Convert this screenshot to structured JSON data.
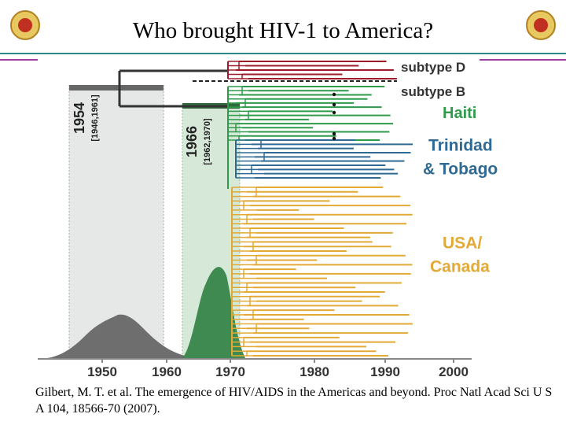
{
  "title": "Who brought HIV-1 to America?",
  "figure": {
    "clades": [
      {
        "lines": [
          "subtype D"
        ]
      },
      {
        "lines": [
          "subtype B"
        ]
      },
      {
        "lines": [
          "Haiti"
        ]
      },
      {
        "lines": [
          "Trinidad",
          "& Tobago"
        ]
      },
      {
        "lines": [
          "USA/",
          "Canada"
        ]
      }
    ],
    "estimates": [
      {
        "year": "1954",
        "interval": "[1946,1961]"
      },
      {
        "year": "1966",
        "interval": "[1962,1970]"
      }
    ],
    "axis_ticks": [
      1950,
      1960,
      1970,
      1980,
      1990,
      2000
    ]
  },
  "citation": "Gilbert, M. T. et al. The emergence of HIV/AIDS in the Americas and beyond. Proc Natl Acad Sci U S A 104, 18566-70 (2007)."
}
